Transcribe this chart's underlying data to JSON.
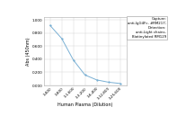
{
  "x_labels": [
    "1:400",
    "1:800",
    "1:1,600",
    "1:3,200",
    "1:6,400",
    "1:12,800",
    "1:25,600"
  ],
  "x_values": [
    400,
    800,
    1600,
    3200,
    6400,
    12800,
    25600
  ],
  "y_values": [
    0.92,
    0.72,
    0.39,
    0.16,
    0.085,
    0.05,
    0.03
  ],
  "xlabel": "Human Plasma (Dilution)",
  "ylabel": "Abs (450nm)",
  "ylim": [
    0.0,
    1.05
  ],
  "yticks": [
    0.0,
    0.2,
    0.4,
    0.6,
    0.8,
    1.0
  ],
  "line_color": "#7ab0d4",
  "marker_color": "#7ab0d4",
  "legend_lines": [
    "Capture:",
    "anti-IgG4Fc, #RM217;",
    "Detection:",
    "anti-Light chains,",
    "Biotinylated RM129"
  ],
  "bg_color": "#ffffff",
  "plot_bg_color": "#ffffff",
  "grid_color": "#d0d0d0"
}
